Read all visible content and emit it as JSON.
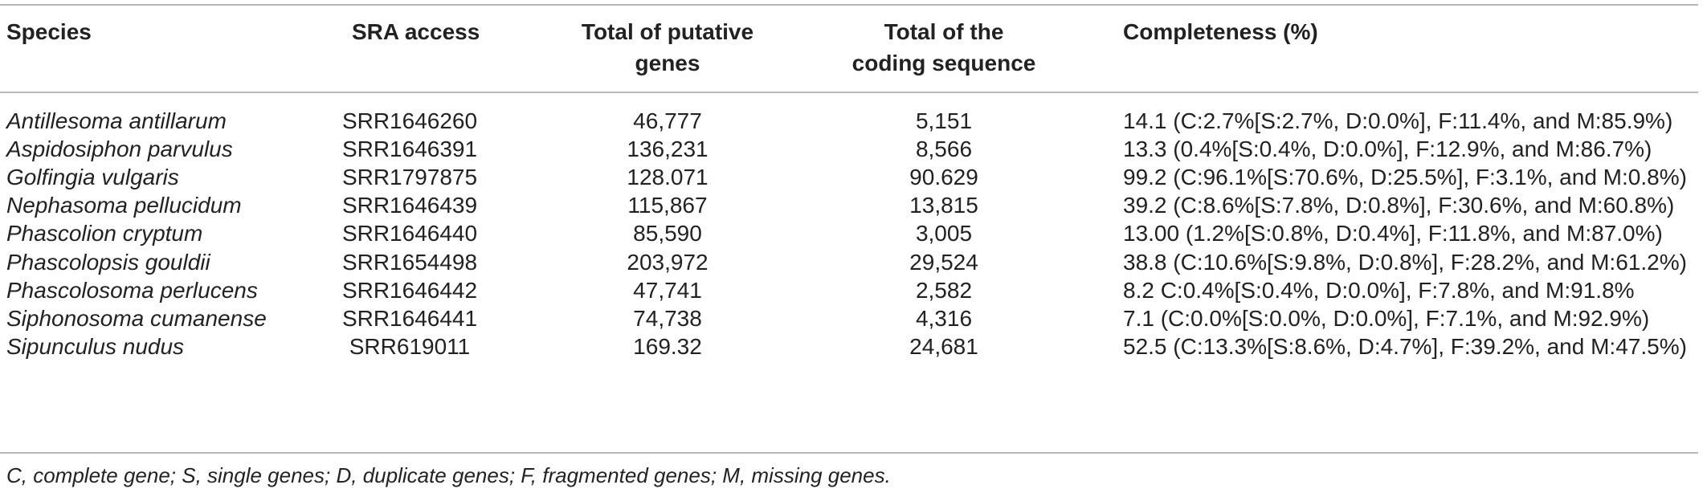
{
  "table": {
    "headers": {
      "species": "Species",
      "sra": "SRA access",
      "genes": [
        "Total of putative",
        "genes"
      ],
      "cds": [
        "Total of the",
        "coding sequence"
      ],
      "completeness": "Completeness (%)"
    },
    "rows": [
      {
        "species": "Antillesoma antillarum",
        "sra": "SRR1646260",
        "genes": "46,777",
        "cds": "5,151",
        "completeness": "14.1 (C:2.7%[S:2.7%, D:0.0%], F:11.4%, and M:85.9%)"
      },
      {
        "species": "Aspidosiphon parvulus",
        "sra": "SRR1646391",
        "genes": "136,231",
        "cds": "8,566",
        "completeness": "13.3 (0.4%[S:0.4%, D:0.0%], F:12.9%, and M:86.7%)"
      },
      {
        "species": "Golfingia vulgaris",
        "sra": "SRR1797875",
        "genes": "128.071",
        "cds": "90.629",
        "completeness": "99.2 (C:96.1%[S:70.6%, D:25.5%], F:3.1%, and M:0.8%)"
      },
      {
        "species": "Nephasoma pellucidum",
        "sra": "SRR1646439",
        "genes": "115,867",
        "cds": "13,815",
        "completeness": "39.2 (C:8.6%[S:7.8%, D:0.8%], F:30.6%, and M:60.8%)"
      },
      {
        "species": "Phascolion cryptum",
        "sra": "SRR1646440",
        "genes": "85,590",
        "cds": "3,005",
        "completeness": "13.00 (1.2%[S:0.8%, D:0.4%], F:11.8%, and M:87.0%)"
      },
      {
        "species": "Phascolopsis gouldii",
        "sra": "SRR1654498",
        "genes": "203,972",
        "cds": "29,524",
        "completeness": "38.8 (C:10.6%[S:9.8%, D:0.8%], F:28.2%, and M:61.2%)"
      },
      {
        "species": "Phascolosoma perlucens",
        "sra": "SRR1646442",
        "genes": "47,741",
        "cds": "2,582",
        "completeness": "8.2 C:0.4%[S:0.4%, D:0.0%], F:7.8%, and M:91.8%"
      },
      {
        "species": "Siphonosoma cumanense",
        "sra": "SRR1646441",
        "genes": "74,738",
        "cds": "4,316",
        "completeness": "7.1 (C:0.0%[S:0.0%, D:0.0%], F:7.1%, and M:92.9%)"
      },
      {
        "species": "Sipunculus nudus",
        "sra": "SRR619011",
        "genes": "169.32",
        "cds": "24,681",
        "completeness": "52.5 (C:13.3%[S:8.6%, D:4.7%], F:39.2%, and M:47.5%)"
      }
    ],
    "footnote": "C, complete gene; S, single genes; D, duplicate genes; F, fragmented genes; M, missing genes."
  }
}
